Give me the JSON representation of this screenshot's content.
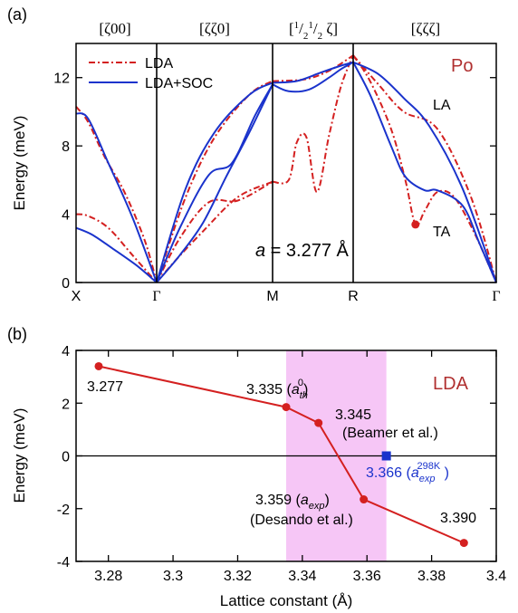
{
  "colors": {
    "lda": "#d42020",
    "soc": "#1a33cc",
    "title": "#b03030",
    "shade": "#f6c6f6",
    "exp_marker": "#1a33cc",
    "axis": "#000000"
  },
  "chart_data": [
    {
      "panel_label": "(a)",
      "type": "line",
      "element_label": "Po",
      "ylabel": "Energy (meV)",
      "ylim": [
        0,
        14
      ],
      "yticks": [
        0,
        4,
        8,
        12
      ],
      "x_ticks": [
        "X",
        "Γ",
        "M",
        "R",
        "Γ"
      ],
      "segment_labels": [
        "[ζ00]",
        "[ζζ0]",
        "[1/2 1/2 ζ]",
        "[ζζζ]"
      ],
      "segment_label_parts": {
        "open": "[",
        "one_a": "1",
        "slash_a": "/",
        "two_a": "2",
        "one_b": "1",
        "slash_b": "/",
        "two_b": "2",
        "tail": " ζ]"
      },
      "branch_labels": {
        "la": "LA",
        "ta": "TA"
      },
      "annotation": {
        "var": "a",
        "rest": " = 3.277 Å"
      },
      "legend": {
        "placement": "top-left",
        "entries": [
          "LDA",
          "LDA+SOC"
        ]
      },
      "grid": false,
      "marker_point": {
        "path_pos": 3.74,
        "y": 3.4
      },
      "series": [
        {
          "name": "LDA",
          "style": "dash-dot",
          "branches": [
            {
              "x": [
                0,
                0.15,
                0.35,
                0.6,
                0.85,
                1.0
              ],
              "y": [
                10.3,
                9.4,
                7.4,
                5.3,
                2.5,
                0
              ]
            },
            {
              "x": [
                0,
                0.15,
                0.4,
                0.7,
                1.0
              ],
              "y": [
                4.0,
                3.9,
                3.2,
                1.6,
                0
              ]
            },
            {
              "x": [
                1.0,
                1.2,
                1.45,
                1.7,
                2.0
              ],
              "y": [
                0,
                2.6,
                4.7,
                4.8,
                5.9
              ]
            },
            {
              "x": [
                1.0,
                1.15,
                1.4,
                1.7,
                2.0
              ],
              "y": [
                0,
                1.2,
                3.0,
                5.0,
                5.9
              ]
            },
            {
              "x": [
                1.0,
                1.25,
                1.5,
                1.8,
                2.0
              ],
              "y": [
                0,
                5.0,
                8.5,
                11.0,
                11.8
              ]
            },
            {
              "x": [
                2.0,
                2.2,
                2.3,
                2.42,
                2.55,
                2.7,
                2.85,
                3.0
              ],
              "y": [
                5.9,
                6.0,
                8.2,
                8.5,
                5.3,
                8.6,
                11.5,
                13.3
              ]
            },
            {
              "x": [
                2.0,
                2.4,
                2.7,
                3.0
              ],
              "y": [
                11.8,
                11.9,
                12.4,
                13.3
              ]
            },
            {
              "x": [
                3.0,
                3.2,
                3.45,
                3.62,
                3.74,
                3.85,
                4.0,
                4.2,
                4.45,
                4.7
              ],
              "y": [
                13.3,
                11.8,
                9.0,
                6.0,
                3.4,
                4.2,
                5.3,
                5.0,
                2.8,
                0
              ]
            },
            {
              "x": [
                3.0,
                3.3,
                3.6,
                4.0,
                4.4,
                4.7
              ],
              "y": [
                13.3,
                11.6,
                10.0,
                9.0,
                5.0,
                0
              ]
            }
          ]
        },
        {
          "name": "LDA+SOC",
          "style": "solid",
          "branches": [
            {
              "x": [
                0,
                0.15,
                0.4,
                0.7,
                1.0
              ],
              "y": [
                9.9,
                9.6,
                7.0,
                3.8,
                0
              ]
            },
            {
              "x": [
                0,
                0.2,
                0.45,
                0.75,
                1.0
              ],
              "y": [
                3.2,
                2.8,
                2.0,
                1.0,
                0
              ]
            },
            {
              "x": [
                1.0,
                1.2,
                1.4,
                1.6,
                1.8,
                2.0
              ],
              "y": [
                0,
                1.6,
                3.5,
                6.2,
                8.8,
                11.6
              ]
            },
            {
              "x": [
                1.0,
                1.2,
                1.45,
                1.65,
                1.85,
                2.0
              ],
              "y": [
                0,
                3.2,
                6.3,
                7.0,
                9.8,
                11.6
              ]
            },
            {
              "x": [
                1.0,
                1.25,
                1.5,
                1.8,
                2.0
              ],
              "y": [
                0,
                5.5,
                8.8,
                11.0,
                11.7
              ]
            },
            {
              "x": [
                2.0,
                2.2,
                2.45,
                2.7,
                2.85,
                3.0
              ],
              "y": [
                11.6,
                11.2,
                11.3,
                12.0,
                12.5,
                12.9
              ]
            },
            {
              "x": [
                2.0,
                2.3,
                2.6,
                2.85,
                3.0
              ],
              "y": [
                11.7,
                11.8,
                12.3,
                12.7,
                12.9
              ]
            },
            {
              "x": [
                3.0,
                3.2,
                3.45,
                3.62,
                3.85,
                4.0,
                4.3,
                4.5,
                4.7
              ],
              "y": [
                12.9,
                11.0,
                8.0,
                6.2,
                5.4,
                5.4,
                4.5,
                2.3,
                0
              ]
            },
            {
              "x": [
                3.0,
                3.3,
                3.6,
                3.9,
                4.3,
                4.7
              ],
              "y": [
                12.9,
                12.2,
                10.8,
                9.2,
                5.5,
                0
              ]
            }
          ]
        }
      ]
    },
    {
      "panel_label": "(b)",
      "type": "line",
      "element_label": "LDA",
      "xlabel": "Lattice constant (Å)",
      "ylabel": "Energy (meV)",
      "xlim": [
        3.27,
        3.4
      ],
      "ylim": [
        -4,
        4
      ],
      "xticks": [
        3.28,
        3.3,
        3.32,
        3.34,
        3.36,
        3.38,
        3.4
      ],
      "xtick_labels": [
        "3.28",
        "3.3",
        "3.32",
        "3.34",
        "3.36",
        "3.38",
        "3.4"
      ],
      "yticks": [
        -4,
        -2,
        0,
        2,
        4
      ],
      "grid": false,
      "series": [
        {
          "name": "",
          "x": [
            3.277,
            3.335,
            3.345,
            3.359,
            3.39
          ],
          "y": [
            3.4,
            1.85,
            1.25,
            -1.65,
            -3.3
          ]
        }
      ],
      "shaded_band": {
        "x": [
          3.335,
          3.366
        ]
      },
      "exp_point": {
        "x": 3.366,
        "y": 0.0
      },
      "point_labels": {
        "p1": "3.277",
        "p2_value": "3.335 (",
        "p2_var": "a",
        "p2_sub": "th",
        "p2_sup": "0",
        "p2_close": ")",
        "p3_value": "3.345",
        "p3_ref": "(Beamer et al.)",
        "p4_value": "3.359 (",
        "p4_var": "a",
        "p4_sub": "exp",
        "p4_close": ")",
        "p4_ref": "(Desando et al.)",
        "p5": "3.390",
        "exp_value": "3.366 (",
        "exp_var": "a",
        "exp_sub": "exp",
        "exp_sup": "298K",
        "exp_close": " )"
      }
    }
  ]
}
